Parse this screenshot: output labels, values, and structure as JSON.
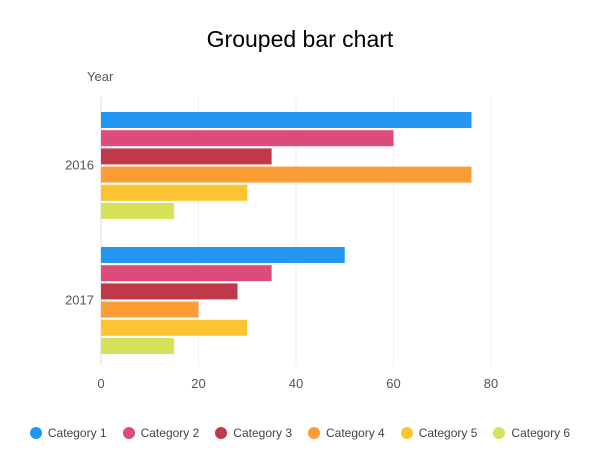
{
  "chart_data": {
    "type": "bar",
    "orientation": "horizontal",
    "title": "Grouped bar chart",
    "ylabel": "Year",
    "xlabel": "",
    "categories": [
      "2016",
      "2017"
    ],
    "xlim": [
      0,
      80
    ],
    "xticks": [
      0,
      20,
      40,
      60,
      80
    ],
    "grid": true,
    "legend_position": "bottom",
    "series": [
      {
        "name": "Category 1",
        "color": "#2196f3",
        "values": [
          76,
          50
        ]
      },
      {
        "name": "Category 2",
        "color": "#dd4b7a",
        "values": [
          60,
          35
        ]
      },
      {
        "name": "Category 3",
        "color": "#c0394b",
        "values": [
          35,
          28
        ]
      },
      {
        "name": "Category 4",
        "color": "#fb9c34",
        "values": [
          76,
          20
        ]
      },
      {
        "name": "Category 5",
        "color": "#fbc430",
        "values": [
          30,
          30
        ]
      },
      {
        "name": "Category 6",
        "color": "#d6e35a",
        "values": [
          15,
          15
        ]
      }
    ]
  }
}
